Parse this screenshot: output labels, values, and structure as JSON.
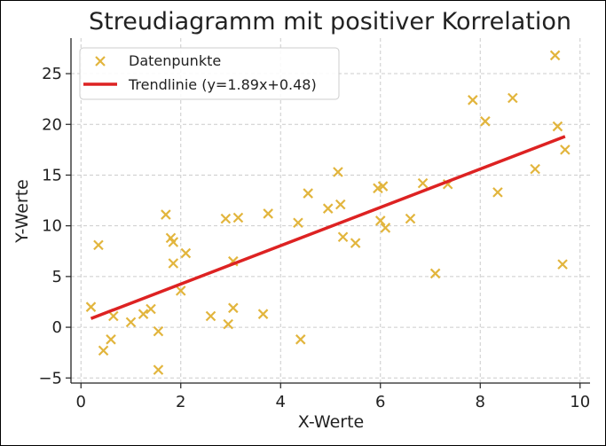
{
  "chart_data": {
    "type": "scatter",
    "title": "Streudiagramm mit positiver Korrelation",
    "xlabel": "X-Werte",
    "ylabel": "Y-Werte",
    "xlim": [
      -0.2,
      10.2
    ],
    "ylim": [
      -5.5,
      28.5
    ],
    "xticks": [
      0,
      2,
      4,
      6,
      8,
      10
    ],
    "yticks": [
      -5,
      0,
      5,
      10,
      15,
      20,
      25
    ],
    "grid": true,
    "legend": "top-left",
    "colors": {
      "points": "#e2b53d",
      "trend": "#dd2222",
      "grid": "#cccccc"
    },
    "series": [
      {
        "name": "Datenpunkte",
        "kind": "scatter",
        "marker": "x",
        "points": [
          [
            0.2,
            2.0
          ],
          [
            0.35,
            8.1
          ],
          [
            0.45,
            -2.3
          ],
          [
            0.6,
            -1.2
          ],
          [
            0.65,
            1.1
          ],
          [
            1.0,
            0.5
          ],
          [
            1.25,
            1.3
          ],
          [
            1.4,
            1.8
          ],
          [
            1.55,
            -4.2
          ],
          [
            1.55,
            -0.4
          ],
          [
            1.7,
            11.1
          ],
          [
            1.8,
            8.8
          ],
          [
            1.85,
            8.4
          ],
          [
            1.85,
            6.3
          ],
          [
            2.0,
            3.6
          ],
          [
            2.1,
            7.3
          ],
          [
            2.6,
            1.1
          ],
          [
            2.9,
            10.7
          ],
          [
            2.95,
            0.3
          ],
          [
            3.05,
            1.9
          ],
          [
            3.05,
            6.5
          ],
          [
            3.15,
            10.8
          ],
          [
            3.65,
            1.3
          ],
          [
            3.75,
            11.2
          ],
          [
            4.35,
            10.3
          ],
          [
            4.4,
            -1.2
          ],
          [
            4.55,
            13.2
          ],
          [
            4.95,
            11.7
          ],
          [
            5.15,
            15.3
          ],
          [
            5.2,
            12.1
          ],
          [
            5.25,
            8.9
          ],
          [
            5.5,
            8.3
          ],
          [
            5.95,
            13.7
          ],
          [
            6.0,
            10.5
          ],
          [
            6.05,
            13.9
          ],
          [
            6.1,
            9.8
          ],
          [
            6.6,
            10.7
          ],
          [
            6.85,
            14.2
          ],
          [
            7.1,
            5.3
          ],
          [
            7.35,
            14.1
          ],
          [
            7.85,
            22.4
          ],
          [
            8.1,
            20.3
          ],
          [
            8.35,
            13.3
          ],
          [
            8.65,
            22.6
          ],
          [
            9.1,
            15.6
          ],
          [
            9.5,
            26.8
          ],
          [
            9.55,
            19.8
          ],
          [
            9.65,
            6.2
          ],
          [
            9.7,
            17.5
          ]
        ]
      },
      {
        "name": "Trendlinie (y=1.89x+0.48)",
        "kind": "line",
        "points": [
          [
            0.2,
            0.86
          ],
          [
            9.7,
            18.81
          ]
        ]
      }
    ]
  }
}
